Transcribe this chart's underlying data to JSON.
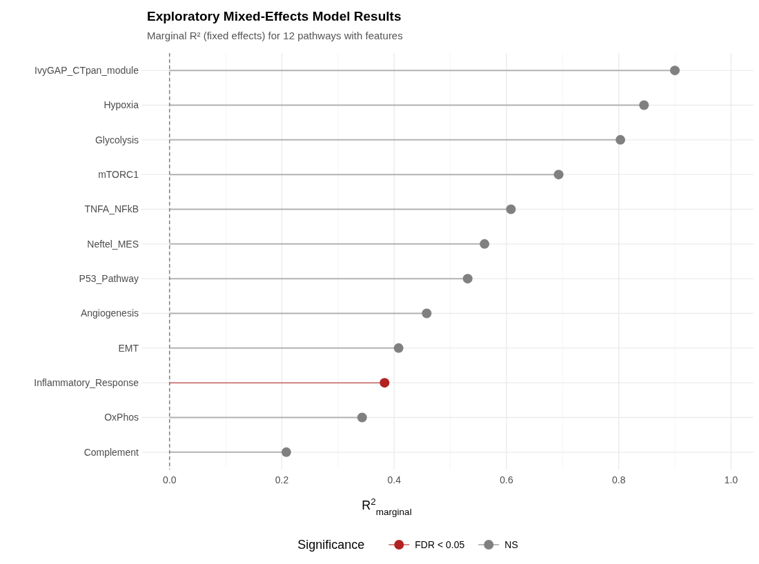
{
  "chart_data": {
    "type": "lollipop",
    "orientation": "horizontal",
    "title": "Exploratory Mixed-Effects Model Results",
    "subtitle": "Marginal R² (fixed effects) for 12 pathways with features",
    "xlabel": "R$^{2}$$_{marginal}$",
    "legend_title": "Significance",
    "categories": [
      "IvyGAP_CTpan_module",
      "Hypoxia",
      "Glycolysis",
      "mTORC1",
      "TNFA_NFkB",
      "Neftel_MES",
      "P53_Pathway",
      "Angiogenesis",
      "EMT",
      "Inflammatory_Response",
      "OxPhos",
      "Complement"
    ],
    "series": [
      {
        "name": "FDR < 0.05",
        "color": "#b22222",
        "values": [
          null,
          null,
          null,
          null,
          null,
          null,
          null,
          null,
          null,
          0.383,
          null,
          null
        ]
      },
      {
        "name": "NS",
        "color": "#808080",
        "values": [
          0.9,
          0.845,
          0.803,
          0.693,
          0.608,
          0.561,
          0.531,
          0.458,
          0.408,
          null,
          0.343,
          0.208
        ]
      }
    ],
    "xlim": [
      -0.05,
      1.04
    ],
    "xticks": [
      {
        "value": 0,
        "label": "0.0"
      },
      {
        "value": 0.2,
        "label": "0.2"
      },
      {
        "value": 0.4,
        "label": "0.4"
      },
      {
        "value": 0.6,
        "label": "0.6"
      },
      {
        "value": 0.8,
        "label": "0.8"
      },
      {
        "value": 1,
        "label": "1.0"
      }
    ],
    "ref_lines": [
      {
        "axis": "x",
        "value": 0,
        "color": "#808080",
        "line_style": "dashed"
      }
    ],
    "grid": true,
    "legend": "bottom",
    "marker": "circle"
  }
}
